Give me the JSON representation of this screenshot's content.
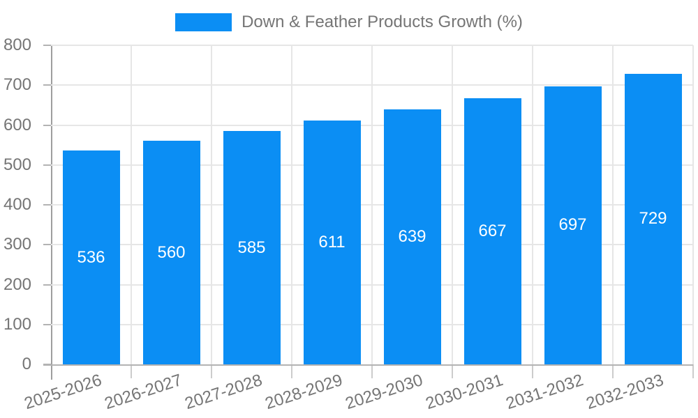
{
  "legend": {
    "label": "Down & Feather Products Growth (%)"
  },
  "chart_data": {
    "type": "bar",
    "title": "Down & Feather Products Growth (%)",
    "categories": [
      "2025-2026",
      "2026-2027",
      "2027-2028",
      "2028-2029",
      "2029-2030",
      "2030-2031",
      "2031-2032",
      "2032-2033"
    ],
    "values": [
      536,
      560,
      585,
      611,
      639,
      667,
      697,
      729
    ],
    "xlabel": "",
    "ylabel": "",
    "ylim": [
      0,
      800
    ],
    "ytick_step": 100,
    "ytick_labels": [
      "0",
      "100",
      "200",
      "300",
      "400",
      "500",
      "600",
      "700",
      "800"
    ],
    "grid": true,
    "legend_position": "top",
    "bar_color": "#0b8ef4",
    "value_label_color": "#ffffff",
    "axis_text_color": "#757575",
    "gridline_color": "#e6e6e6"
  }
}
